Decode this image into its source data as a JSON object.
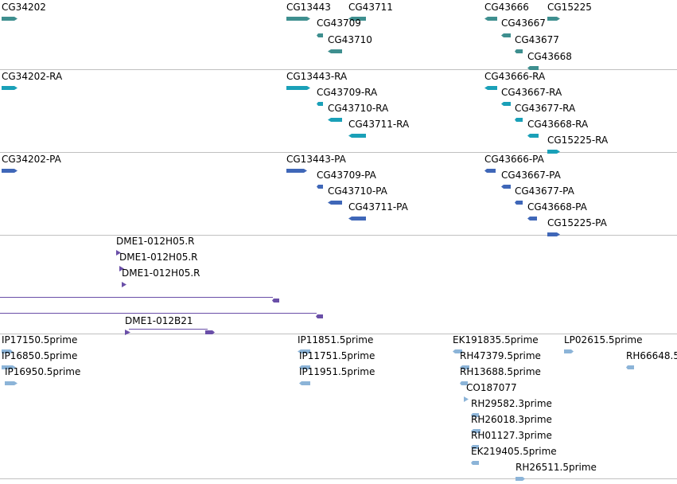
{
  "colors": {
    "gene": "#3e8f8f",
    "transcript": "#1aa0b8",
    "protein": "#3f67b8",
    "clone": "#6a4fa8",
    "est": "#8cb4d8",
    "divider": "#c0c0c0"
  },
  "tracks": {
    "genes": {
      "color_key": "gene",
      "features": [
        {
          "label": "CG34202",
          "glyph": "arrow-right"
        },
        {
          "label": "CG13443",
          "glyph": "arrow-right"
        },
        {
          "label": "CG43711",
          "glyph": "arrow-left"
        },
        {
          "label": "CG43709",
          "glyph": "arrow-left"
        },
        {
          "label": "CG43710",
          "glyph": "arrow-left"
        },
        {
          "label": "CG43666",
          "glyph": "arrow-left"
        },
        {
          "label": "CG15225",
          "glyph": "arrow-right"
        },
        {
          "label": "CG43667",
          "glyph": "arrow-left"
        },
        {
          "label": "CG43677",
          "glyph": "arrow-left"
        },
        {
          "label": "CG43668",
          "glyph": "arrow-left"
        }
      ]
    },
    "transcripts": {
      "color_key": "transcript",
      "features": [
        {
          "label": "CG34202-RA",
          "glyph": "arrow-right"
        },
        {
          "label": "CG13443-RA",
          "glyph": "arrow-right"
        },
        {
          "label": "CG43709-RA",
          "glyph": "arrow-left"
        },
        {
          "label": "CG43710-RA",
          "glyph": "arrow-left"
        },
        {
          "label": "CG43711-RA",
          "glyph": "arrow-left"
        },
        {
          "label": "CG43666-RA",
          "glyph": "arrow-left"
        },
        {
          "label": "CG43667-RA",
          "glyph": "arrow-left"
        },
        {
          "label": "CG43677-RA",
          "glyph": "arrow-left"
        },
        {
          "label": "CG43668-RA",
          "glyph": "arrow-left"
        },
        {
          "label": "CG15225-RA",
          "glyph": "arrow-right"
        }
      ]
    },
    "proteins": {
      "color_key": "protein",
      "features": [
        {
          "label": "CG34202-PA",
          "glyph": "arrow-right"
        },
        {
          "label": "CG13443-PA",
          "glyph": "arrow-right"
        },
        {
          "label": "CG43709-PA",
          "glyph": "arrow-left"
        },
        {
          "label": "CG43710-PA",
          "glyph": "arrow-left"
        },
        {
          "label": "CG43711-PA",
          "glyph": "arrow-left"
        },
        {
          "label": "CG43666-PA",
          "glyph": "arrow-left"
        },
        {
          "label": "CG43667-PA",
          "glyph": "arrow-left"
        },
        {
          "label": "CG43677-PA",
          "glyph": "arrow-left"
        },
        {
          "label": "CG43668-PA",
          "glyph": "arrow-left"
        },
        {
          "label": "CG15225-PA",
          "glyph": "arrow-right"
        }
      ]
    },
    "clones": {
      "color_key": "clone",
      "features": [
        {
          "label": "DME1-012H05.R",
          "glyph": "tri-right"
        },
        {
          "label": "DME1-012H05.R",
          "glyph": "tri-right"
        },
        {
          "label": "DME1-012H05.R",
          "glyph": "tri-right"
        },
        {
          "label": "",
          "glyph": "line-left"
        },
        {
          "label": "",
          "glyph": "line-left"
        },
        {
          "label": "DME1-012B21",
          "glyph": "span"
        }
      ]
    },
    "ests": {
      "color_key": "est",
      "features": [
        {
          "label": "IP17150.5prime",
          "glyph": "arrow-right"
        },
        {
          "label": "IP16850.5prime",
          "glyph": "arrow-right"
        },
        {
          "label": "IP16950.5prime",
          "glyph": "arrow-right"
        },
        {
          "label": "IP11851.5prime",
          "glyph": "arrow-left"
        },
        {
          "label": "IP11751.5prime",
          "glyph": "arrow-left"
        },
        {
          "label": "IP11951.5prime",
          "glyph": "arrow-left"
        },
        {
          "label": "EK191835.5prime",
          "glyph": "arrow-left"
        },
        {
          "label": "LP02615.5prime",
          "glyph": "arrow-right"
        },
        {
          "label": "RH66648.5",
          "glyph": "arrow-left"
        },
        {
          "label": "RH47379.5prime",
          "glyph": "arrow-left"
        },
        {
          "label": "RH13688.5prime",
          "glyph": "arrow-left"
        },
        {
          "label": "CO187077",
          "glyph": "tri-right"
        },
        {
          "label": "RH29582.3prime",
          "glyph": "arrow-left"
        },
        {
          "label": "RH26018.3prime",
          "glyph": "arrow-left"
        },
        {
          "label": "RH01127.3prime",
          "glyph": "arrow-left"
        },
        {
          "label": "EK219405.5prime",
          "glyph": "arrow-left"
        },
        {
          "label": "RH26511.5prime",
          "glyph": "arrow-right"
        }
      ]
    }
  }
}
